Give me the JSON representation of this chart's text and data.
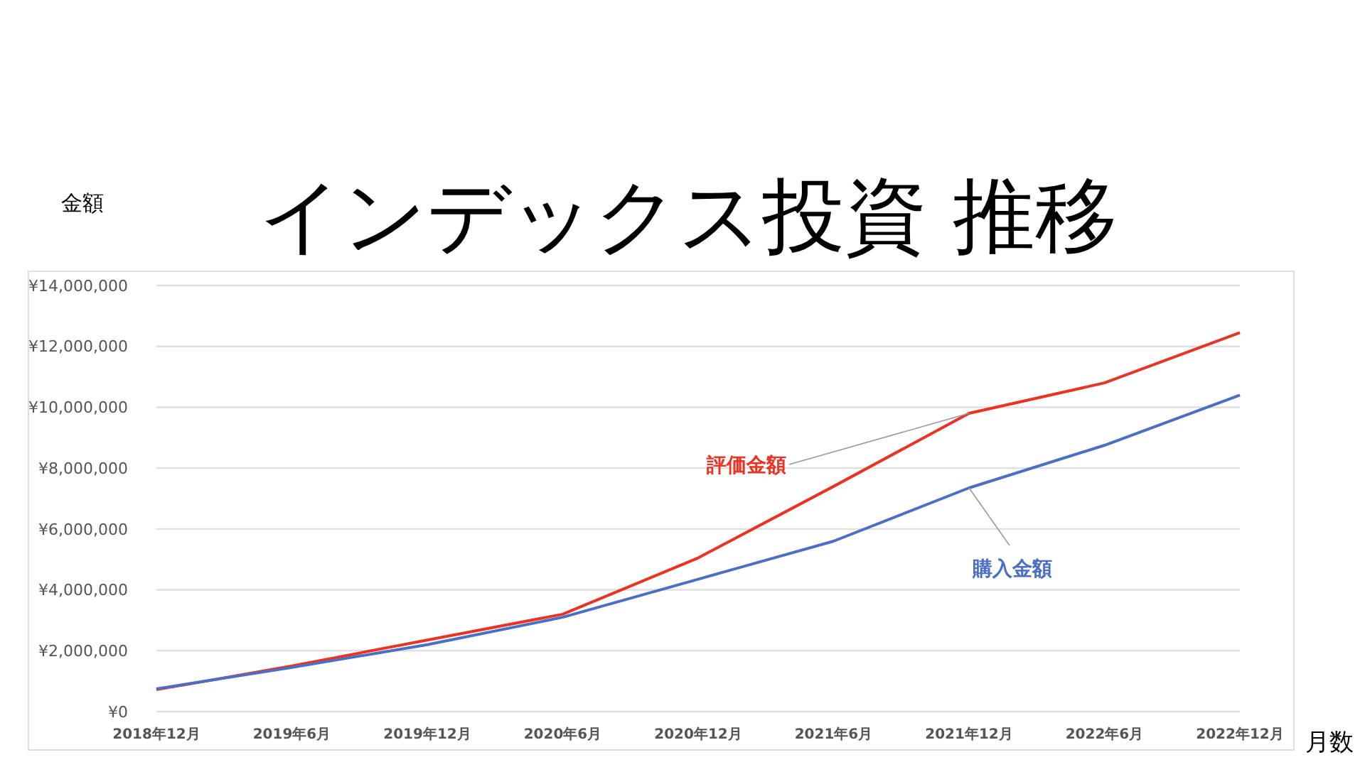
{
  "chart_data": {
    "type": "line",
    "title": "インデックス投資 推移",
    "xlabel": "月数",
    "ylabel": "金額",
    "categories": [
      "2018年12月",
      "2019年6月",
      "2019年12月",
      "2020年6月",
      "2020年12月",
      "2021年6月",
      "2021年12月",
      "2022年6月",
      "2022年12月"
    ],
    "series": [
      {
        "name": "評価金額",
        "color": "#ea3323",
        "values": [
          720000,
          1500000,
          2350000,
          3200000,
          5050000,
          7400000,
          9800000,
          10800000,
          12450000
        ]
      },
      {
        "name": "購入金額",
        "color": "#4a6fc4",
        "values": [
          750000,
          1450000,
          2200000,
          3100000,
          4350000,
          5600000,
          7350000,
          8750000,
          10400000
        ]
      }
    ],
    "ylim": [
      0,
      14000000
    ],
    "yticks": [
      {
        "value": 0,
        "label": "¥0"
      },
      {
        "value": 2000000,
        "label": "¥2,000,000"
      },
      {
        "value": 4000000,
        "label": "¥4,000,000"
      },
      {
        "value": 6000000,
        "label": "¥6,000,000"
      },
      {
        "value": 8000000,
        "label": "¥8,000,000"
      },
      {
        "value": 10000000,
        "label": "¥10,000,000"
      },
      {
        "value": 12000000,
        "label": "¥12,000,000"
      },
      {
        "value": 14000000,
        "label": "¥14,000,000"
      }
    ],
    "grid": "y",
    "marker": "none",
    "line_style": "solid"
  }
}
